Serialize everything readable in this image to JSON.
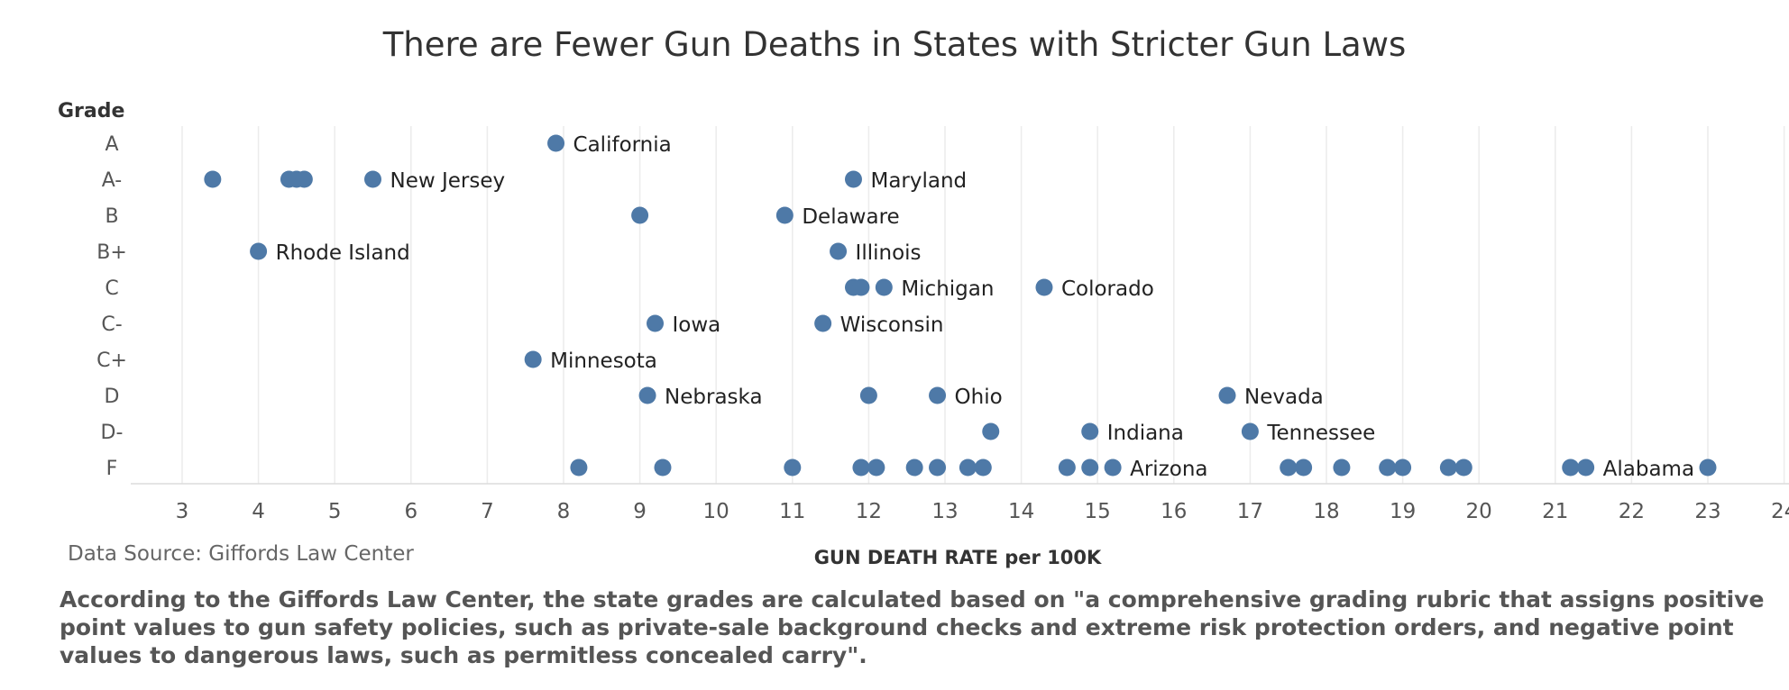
{
  "chart_data": {
    "type": "scatter",
    "title": "There are Fewer Gun Deaths in States with Stricter Gun Laws",
    "ylabel": "Grade",
    "xlabel": "GUN DEATH RATE per 100K",
    "categories": [
      "A",
      "A-",
      "B",
      "B+",
      "C",
      "C-",
      "C+",
      "D",
      "D-",
      "F"
    ],
    "xlim": [
      2.3,
      24
    ],
    "xticks": [
      3,
      4,
      5,
      6,
      7,
      8,
      9,
      10,
      11,
      12,
      13,
      14,
      15,
      16,
      17,
      18,
      19,
      20,
      21,
      22,
      23,
      24
    ],
    "grid": "vertical",
    "marker_color": "#4e79a7",
    "points": [
      {
        "grade": "A",
        "x": 7.9,
        "label": "California"
      },
      {
        "grade": "A-",
        "x": 3.4,
        "label": ""
      },
      {
        "grade": "A-",
        "x": 4.4,
        "label": ""
      },
      {
        "grade": "A-",
        "x": 4.5,
        "label": ""
      },
      {
        "grade": "A-",
        "x": 4.6,
        "label": ""
      },
      {
        "grade": "A-",
        "x": 5.5,
        "label": "New Jersey"
      },
      {
        "grade": "A-",
        "x": 11.8,
        "label": "Maryland"
      },
      {
        "grade": "B",
        "x": 9.0,
        "label": ""
      },
      {
        "grade": "B",
        "x": 10.9,
        "label": "Delaware"
      },
      {
        "grade": "B+",
        "x": 4.0,
        "label": "Rhode Island"
      },
      {
        "grade": "B+",
        "x": 11.6,
        "label": "Illinois"
      },
      {
        "grade": "C",
        "x": 11.8,
        "label": ""
      },
      {
        "grade": "C",
        "x": 11.9,
        "label": ""
      },
      {
        "grade": "C",
        "x": 12.2,
        "label": "Michigan"
      },
      {
        "grade": "C",
        "x": 14.3,
        "label": "Colorado"
      },
      {
        "grade": "C-",
        "x": 9.2,
        "label": "Iowa"
      },
      {
        "grade": "C-",
        "x": 11.4,
        "label": "Wisconsin"
      },
      {
        "grade": "C+",
        "x": 7.6,
        "label": "Minnesota"
      },
      {
        "grade": "D",
        "x": 9.1,
        "label": "Nebraska"
      },
      {
        "grade": "D",
        "x": 12.0,
        "label": ""
      },
      {
        "grade": "D",
        "x": 12.9,
        "label": "Ohio"
      },
      {
        "grade": "D",
        "x": 16.7,
        "label": "Nevada"
      },
      {
        "grade": "D-",
        "x": 13.6,
        "label": ""
      },
      {
        "grade": "D-",
        "x": 14.9,
        "label": "Indiana"
      },
      {
        "grade": "D-",
        "x": 17.0,
        "label": "Tennessee"
      },
      {
        "grade": "F",
        "x": 8.2,
        "label": ""
      },
      {
        "grade": "F",
        "x": 9.3,
        "label": ""
      },
      {
        "grade": "F",
        "x": 11.0,
        "label": ""
      },
      {
        "grade": "F",
        "x": 11.9,
        "label": ""
      },
      {
        "grade": "F",
        "x": 12.1,
        "label": ""
      },
      {
        "grade": "F",
        "x": 12.6,
        "label": ""
      },
      {
        "grade": "F",
        "x": 12.9,
        "label": ""
      },
      {
        "grade": "F",
        "x": 13.3,
        "label": ""
      },
      {
        "grade": "F",
        "x": 13.5,
        "label": ""
      },
      {
        "grade": "F",
        "x": 14.6,
        "label": ""
      },
      {
        "grade": "F",
        "x": 14.9,
        "label": ""
      },
      {
        "grade": "F",
        "x": 15.2,
        "label": "Arizona"
      },
      {
        "grade": "F",
        "x": 17.5,
        "label": ""
      },
      {
        "grade": "F",
        "x": 17.7,
        "label": ""
      },
      {
        "grade": "F",
        "x": 18.2,
        "label": ""
      },
      {
        "grade": "F",
        "x": 18.8,
        "label": ""
      },
      {
        "grade": "F",
        "x": 19.0,
        "label": ""
      },
      {
        "grade": "F",
        "x": 19.6,
        "label": ""
      },
      {
        "grade": "F",
        "x": 19.8,
        "label": ""
      },
      {
        "grade": "F",
        "x": 21.2,
        "label": ""
      },
      {
        "grade": "F",
        "x": 21.4,
        "label": "Alabama"
      },
      {
        "grade": "F",
        "x": 23.0,
        "label": ""
      }
    ]
  },
  "source": "Data Source: Giffords Law Center",
  "footnote": "According to the Giffords Law Center, the state grades are calculated based on \"a comprehensive grading rubric that assigns positive point values to gun safety policies, such as private-sale background checks and extreme risk protection orders, and negative point values to dangerous laws, such as permitless concealed carry\"."
}
